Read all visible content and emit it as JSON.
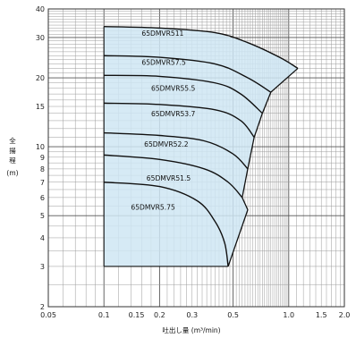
{
  "chart_data": {
    "type": "line",
    "title": "",
    "xlabel": "吐出し量 (m³/min)",
    "ylabel": [
      "全",
      "揚",
      "程",
      "(m)"
    ],
    "xscale": "log",
    "yscale": "log",
    "xlim": [
      0.05,
      2.0
    ],
    "ylim": [
      2,
      40
    ],
    "x_ticks": [
      {
        "v": 0.05,
        "label": "0.05"
      },
      {
        "v": 0.1,
        "label": "0.1"
      },
      {
        "v": 0.15,
        "label": "0.15"
      },
      {
        "v": 0.2,
        "label": "0.2"
      },
      {
        "v": 0.3,
        "label": "0.3"
      },
      {
        "v": 0.5,
        "label": "0.5"
      },
      {
        "v": 1.0,
        "label": "1.0"
      },
      {
        "v": 1.5,
        "label": "1.5"
      },
      {
        "v": 2.0,
        "label": "2.0"
      }
    ],
    "y_ticks": [
      {
        "v": 2,
        "label": "2"
      },
      {
        "v": 3,
        "label": "3"
      },
      {
        "v": 4,
        "label": "4"
      },
      {
        "v": 5,
        "label": "5"
      },
      {
        "v": 6,
        "label": "6"
      },
      {
        "v": 7,
        "label": "7"
      },
      {
        "v": 8,
        "label": "8"
      },
      {
        "v": 9,
        "label": "9"
      },
      {
        "v": 10,
        "label": "10"
      },
      {
        "v": 15,
        "label": "15"
      },
      {
        "v": 20,
        "label": "20"
      },
      {
        "v": 30,
        "label": "30"
      },
      {
        "v": 40,
        "label": "40"
      }
    ],
    "grid": true,
    "fill_color": "#cfe6f3",
    "line_color": "#111111",
    "series": [
      {
        "name": "65DMVR511",
        "label_at": [
          0.16,
          30.5
        ],
        "points": [
          [
            0.1,
            33.5
          ],
          [
            0.2,
            33.0
          ],
          [
            0.4,
            31.5
          ],
          [
            0.6,
            28.5
          ],
          [
            0.9,
            24.5
          ],
          [
            1.12,
            22.0
          ]
        ]
      },
      {
        "name": "65DMVR57.5",
        "label_at": [
          0.16,
          22.8
        ],
        "points": [
          [
            0.1,
            25.0
          ],
          [
            0.2,
            24.6
          ],
          [
            0.4,
            23.0
          ],
          [
            0.6,
            20.0
          ],
          [
            0.8,
            17.3
          ]
        ]
      },
      {
        "name": "65DMVR55.5",
        "label_at": [
          0.18,
          17.6
        ],
        "points": [
          [
            0.1,
            20.5
          ],
          [
            0.2,
            20.3
          ],
          [
            0.4,
            19.0
          ],
          [
            0.55,
            17.0
          ],
          [
            0.72,
            14.0
          ]
        ]
      },
      {
        "name": "65DMVR53.7",
        "label_at": [
          0.18,
          13.6
        ],
        "points": [
          [
            0.1,
            15.5
          ],
          [
            0.2,
            15.3
          ],
          [
            0.4,
            14.5
          ],
          [
            0.55,
            13.0
          ],
          [
            0.65,
            11.0
          ]
        ]
      },
      {
        "name": "65DMVR52.2",
        "label_at": [
          0.165,
          10.0
        ],
        "points": [
          [
            0.1,
            11.5
          ],
          [
            0.2,
            11.2
          ],
          [
            0.35,
            10.6
          ],
          [
            0.5,
            9.3
          ],
          [
            0.6,
            8.0
          ]
        ]
      },
      {
        "name": "65DMVR51.5",
        "label_at": [
          0.17,
          7.1
        ],
        "points": [
          [
            0.1,
            9.2
          ],
          [
            0.2,
            8.8
          ],
          [
            0.35,
            8.0
          ],
          [
            0.47,
            7.0
          ],
          [
            0.56,
            6.0
          ]
        ]
      },
      {
        "name": "65DMVR5.75",
        "label_at": [
          0.14,
          5.3
        ],
        "points": [
          [
            0.1,
            7.0
          ],
          [
            0.2,
            6.7
          ],
          [
            0.32,
            5.8
          ],
          [
            0.4,
            4.7
          ],
          [
            0.45,
            3.8
          ],
          [
            0.47,
            3.0
          ]
        ]
      }
    ],
    "limit_line": [
      [
        1.12,
        22.0
      ],
      [
        0.8,
        17.3
      ],
      [
        0.72,
        14.0
      ],
      [
        0.65,
        11.0
      ],
      [
        0.6,
        8.0
      ],
      [
        0.56,
        6.0
      ],
      [
        0.6,
        5.3
      ],
      [
        0.47,
        3.0
      ]
    ],
    "region_bottom_y": 3.0,
    "region_left_x": 0.1
  }
}
